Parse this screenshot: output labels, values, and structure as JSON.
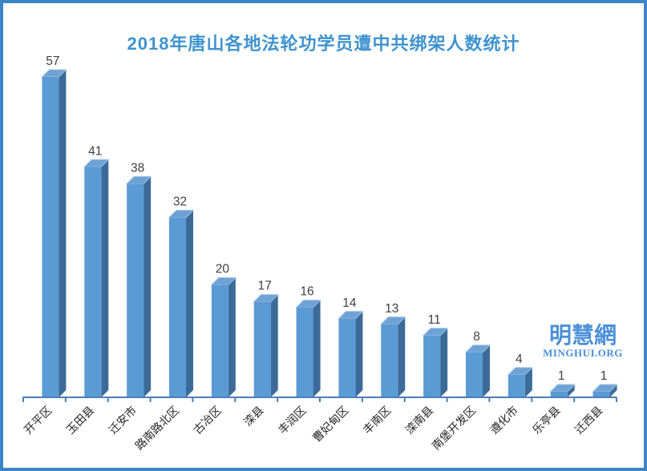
{
  "title": "2018年唐山各地法轮功学员遭中共绑架人数统计",
  "watermark": {
    "name": "明慧網",
    "domain": "MINGHUI.ORG"
  },
  "chart_data": {
    "type": "bar",
    "style": "3d-column",
    "title": "2018年唐山各地法轮功学员遭中共绑架人数统计",
    "categories": [
      "开平区",
      "玉田县",
      "迁安市",
      "路南路北区",
      "古冶区",
      "滦县",
      "丰润区",
      "曹妃甸区",
      "丰南区",
      "滦南县",
      "南堡开发区",
      "遵化市",
      "乐亭县",
      "迁西县"
    ],
    "values": [
      57,
      41,
      38,
      32,
      20,
      17,
      16,
      14,
      13,
      11,
      8,
      4,
      1,
      1
    ],
    "xlabel": "",
    "ylabel": "",
    "ylim": [
      0,
      60
    ],
    "grid": false,
    "legend": "none",
    "data_labels": true,
    "category_label_rotation": -45,
    "colors": {
      "bar_front": "#5b9bd5",
      "bar_side": "#3d6b99",
      "bar_top": "#6ea2d5",
      "bar_top_highlight": "#9ec4e8",
      "axis_line": "#4a7ebb",
      "value_label": "#3f3f3f",
      "category_label": "#262626",
      "title": "#3e93cf",
      "frame_border": "#3c85c6",
      "background": "#ffffff",
      "watermark": "#4a90d9"
    }
  }
}
